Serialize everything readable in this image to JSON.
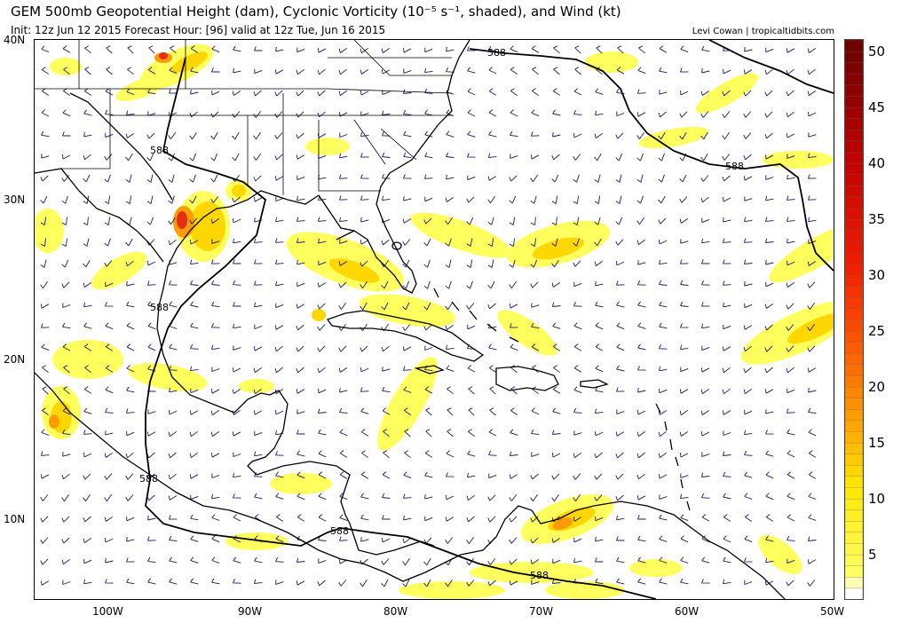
{
  "header": {
    "title": "GEM 500mb Geopotential Height (dam), Cyclonic Vorticity (10⁻⁵ s⁻¹, shaded), and Wind (kt)",
    "subtitle": "Init: 12z Jun 12 2015   Forecast Hour: [96]   valid at 12z Tue, Jun 16 2015",
    "credit": "Levi Cowan | tropicaltidbits.com"
  },
  "map": {
    "lon_range": [
      -105,
      -50
    ],
    "lat_range": [
      5,
      40
    ],
    "lat_labels": [
      "40N",
      "30N",
      "20N",
      "10N"
    ],
    "lat_values": [
      40,
      30,
      20,
      10
    ],
    "lon_labels": [
      "100W",
      "90W",
      "80W",
      "70W",
      "60W",
      "50W"
    ],
    "lon_values": [
      -100,
      -90,
      -80,
      -70,
      -60,
      -50
    ],
    "contour_label": "588",
    "colors": {
      "coast": "#000000",
      "barb": "#1a1a5e",
      "light_yellow": "#ffff33",
      "yellow": "#ffe000",
      "orange": "#ffa500",
      "red": "#e02000",
      "dark_red": "#b00000"
    }
  },
  "colorbar": {
    "labels": [
      "50",
      "45",
      "40",
      "35",
      "30",
      "25",
      "20",
      "15",
      "10",
      "5"
    ],
    "values": [
      50,
      45,
      40,
      35,
      30,
      25,
      20,
      15,
      10,
      5
    ],
    "min": 2,
    "max": 52
  }
}
